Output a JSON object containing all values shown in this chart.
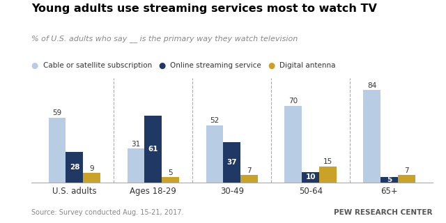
{
  "title": "Young adults use streaming services most to watch TV",
  "subtitle": "% of U.S. adults who say __ is the primary way they watch television",
  "categories": [
    "U.S. adults",
    "Ages 18-29",
    "30-49",
    "50-64",
    "65+"
  ],
  "series": {
    "Cable or satellite subscription": [
      59,
      31,
      52,
      70,
      84
    ],
    "Online streaming service": [
      28,
      61,
      37,
      10,
      5
    ],
    "Digital antenna": [
      9,
      5,
      7,
      15,
      7
    ]
  },
  "colors": {
    "Cable or satellite subscription": "#b8cce4",
    "Online streaming service": "#1f3864",
    "Digital antenna": "#c9a227"
  },
  "source": "Source: Survey conducted Aug. 15-21, 2017.",
  "brand": "PEW RESEARCH CENTER",
  "bar_width": 0.22,
  "ylim": [
    0,
    95
  ],
  "background_color": "#ffffff"
}
